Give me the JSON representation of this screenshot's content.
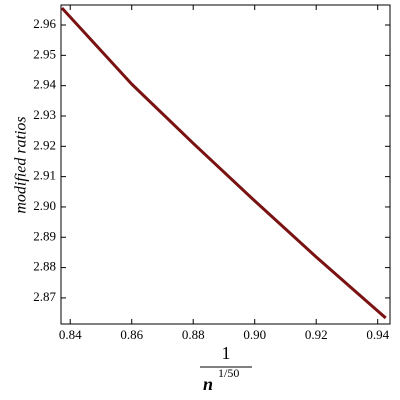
{
  "chart_data": {
    "type": "line",
    "ylabel": "modified ratios",
    "xlabel": {
      "numerator": "1",
      "base": "n",
      "exponent": "1/50"
    },
    "x": [
      0.8373,
      0.86,
      0.88,
      0.9,
      0.92,
      0.9426
    ],
    "series": [
      {
        "color": "#7a1212",
        "values": [
          2.9656,
          2.9405,
          2.921,
          2.902,
          2.8835,
          2.8634
        ]
      }
    ],
    "xlim": [
      0.837,
      0.944
    ],
    "ylim": [
      2.8614,
      2.9666
    ],
    "xticks": [
      {
        "value": 0.84,
        "label": "0.84"
      },
      {
        "value": 0.86,
        "label": "0.86"
      },
      {
        "value": 0.88,
        "label": "0.88"
      },
      {
        "value": 0.9,
        "label": "0.90"
      },
      {
        "value": 0.92,
        "label": "0.92"
      },
      {
        "value": 0.94,
        "label": "0.94"
      }
    ],
    "yticks": [
      {
        "value": 2.87,
        "label": "2.87"
      },
      {
        "value": 2.88,
        "label": "2.88"
      },
      {
        "value": 2.89,
        "label": "2.89"
      },
      {
        "value": 2.9,
        "label": "2.90"
      },
      {
        "value": 2.91,
        "label": "2.91"
      },
      {
        "value": 2.92,
        "label": "2.92"
      },
      {
        "value": 2.93,
        "label": "2.93"
      },
      {
        "value": 2.94,
        "label": "2.94"
      },
      {
        "value": 2.95,
        "label": "2.95"
      },
      {
        "value": 2.96,
        "label": "2.96"
      }
    ],
    "grid": false
  }
}
